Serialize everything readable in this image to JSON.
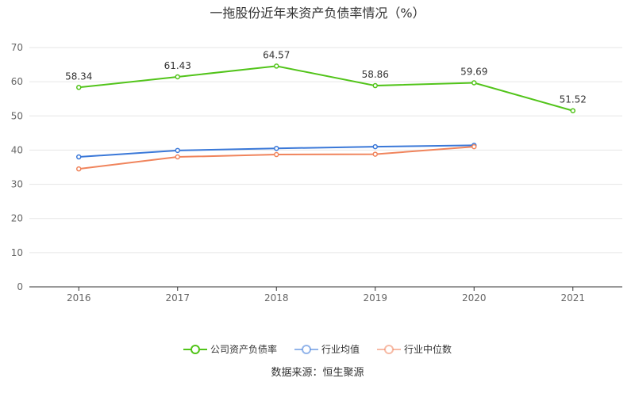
{
  "title": "一拖股份近年来资产负债率情况（%）",
  "source": "数据来源：恒生聚源",
  "chart_data": {
    "type": "line",
    "title": "一拖股份近年来资产负债率情况（%）",
    "categories": [
      "2016",
      "2017",
      "2018",
      "2019",
      "2020",
      "2021"
    ],
    "ylim": [
      0,
      70
    ],
    "yticks": [
      0,
      10,
      20,
      30,
      40,
      50,
      60,
      70
    ],
    "grid": true,
    "legend_position": "bottom",
    "series": [
      {
        "name": "公司资产负债率",
        "color": "#52c41a",
        "show_labels": true,
        "values": [
          58.34,
          61.43,
          64.57,
          58.86,
          59.69,
          51.52
        ],
        "labels": [
          "58.34",
          "61.43",
          "64.57",
          "58.86",
          "59.69",
          "51.52"
        ]
      },
      {
        "name": "行业均值",
        "color": "#3a78d8",
        "show_labels": false,
        "values": [
          38.0,
          39.9,
          40.5,
          41.0,
          41.4,
          null
        ]
      },
      {
        "name": "行业中位数",
        "color": "#f0845c",
        "show_labels": false,
        "values": [
          34.5,
          38.0,
          38.7,
          38.8,
          41.0,
          null
        ]
      }
    ]
  }
}
